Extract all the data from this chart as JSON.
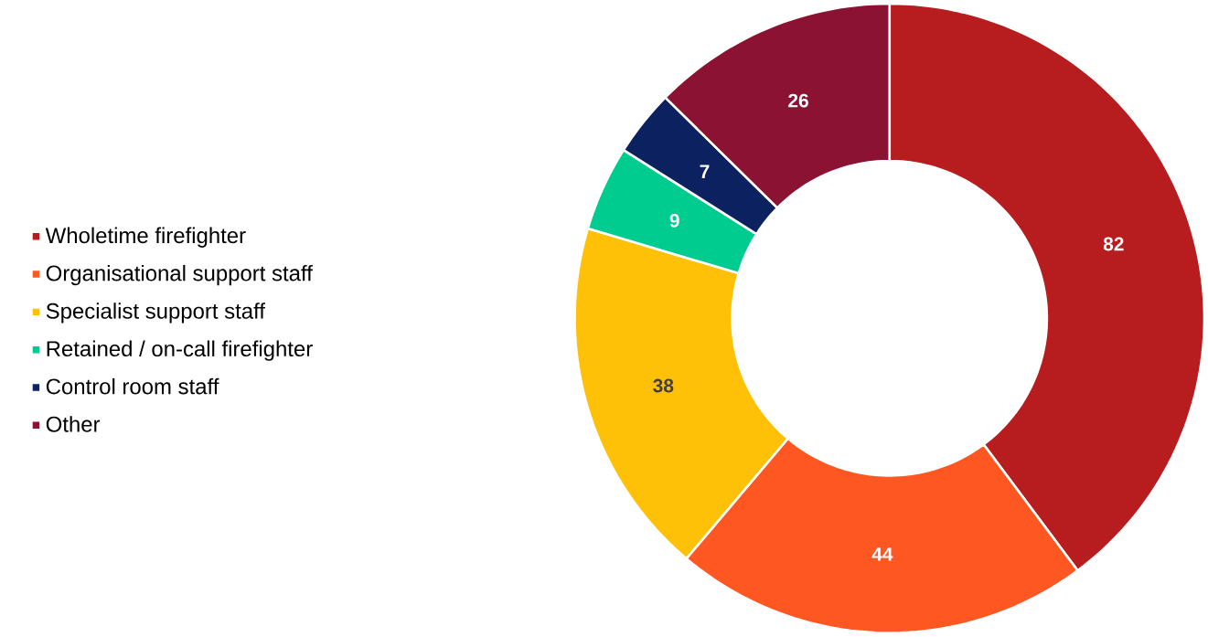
{
  "chart_data": {
    "type": "donut",
    "categories": [
      "Wholetime firefighter",
      "Organisational support staff",
      "Specialist support staff",
      "Retained / on-call firefighter",
      "Control room staff",
      "Other"
    ],
    "values": [
      82,
      44,
      38,
      9,
      7,
      26
    ],
    "colors": [
      "#b71c1e",
      "#ff5722",
      "#ffc107",
      "#00cc8f",
      "#0c2260",
      "#8b1232"
    ],
    "data_labels": true,
    "legend": "left"
  }
}
